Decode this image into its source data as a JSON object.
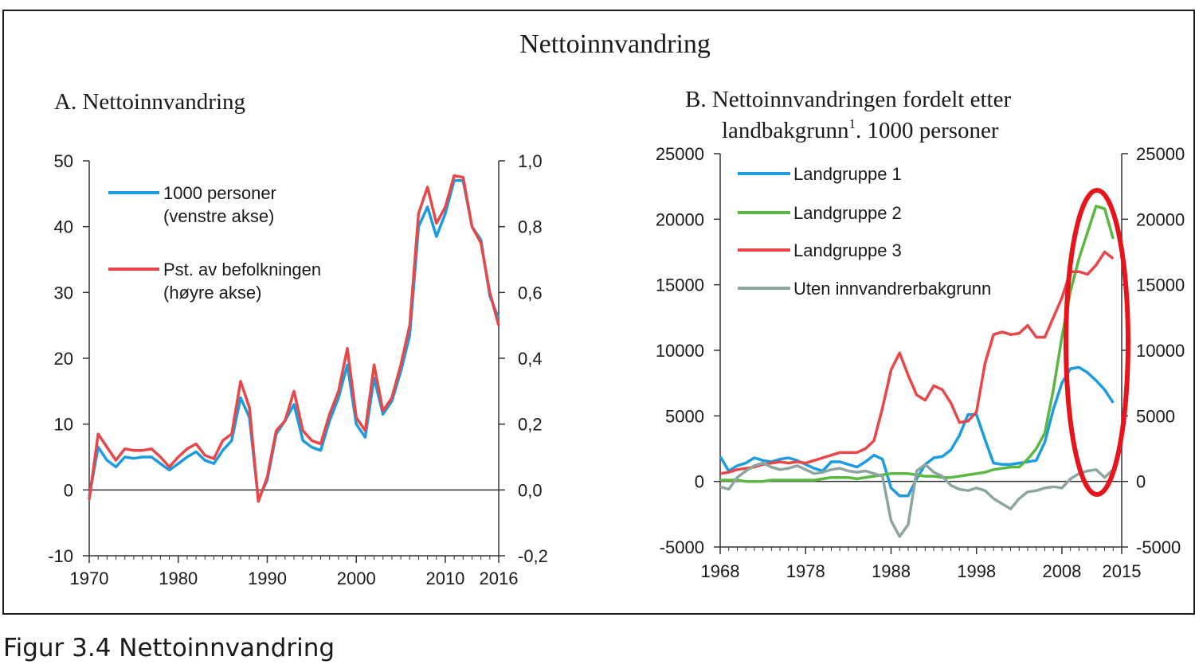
{
  "figure": {
    "title": "Nettoinnvandring",
    "caption": "Figur 3.4  Nettoinnvandring"
  },
  "panel_a": {
    "title": "A. Nettoinnvandring",
    "legend": [
      "1000 personer",
      "(venstre akse)",
      "Pst. av befolkningen",
      "(høyre akse)"
    ]
  },
  "panel_b": {
    "title_line1": "B. Nettoinnvandringen fordelt etter",
    "title_line2": "landbakgrunn",
    "title_sup": "1",
    "title_line2_rest": ". 1000 personer",
    "legend": [
      "Landgruppe 1",
      "Landgruppe 2",
      "Landgruppe 3",
      "Uten innvandrerbakgrunn"
    ]
  },
  "annotation": {
    "type": "ellipse",
    "color": "#e8141b"
  },
  "chart_data": [
    {
      "type": "line",
      "title": "A. Nettoinnvandring",
      "x_ticks": [
        1970,
        1980,
        1990,
        2000,
        2010,
        2016
      ],
      "x_range": [
        1970,
        2016
      ],
      "ylim_left": [
        -10,
        50
      ],
      "yticks_left": [
        "-10",
        "0",
        "10",
        "20",
        "30",
        "40",
        "50"
      ],
      "ylim_right": [
        -0.2,
        1.0
      ],
      "yticks_right": [
        "-0,2",
        "0,0",
        "0,2",
        "0,4",
        "0,6",
        "0,8",
        "1,0"
      ],
      "grid": false,
      "legend_position": "top-left",
      "x": [
        1970,
        1971,
        1972,
        1973,
        1974,
        1975,
        1976,
        1977,
        1978,
        1979,
        1980,
        1981,
        1982,
        1983,
        1984,
        1985,
        1986,
        1987,
        1988,
        1989,
        1990,
        1991,
        1992,
        1993,
        1994,
        1995,
        1996,
        1997,
        1998,
        1999,
        2000,
        2001,
        2002,
        2003,
        2004,
        2005,
        2006,
        2007,
        2008,
        2009,
        2010,
        2011,
        2012,
        2013,
        2014,
        2015,
        2016
      ],
      "series": [
        {
          "name": "1000 personer (venstre akse)",
          "axis": "left",
          "color": "#1b9be0",
          "values": [
            -1,
            6.5,
            4.5,
            3.5,
            5,
            4.8,
            5,
            5,
            4,
            3,
            4,
            5,
            5.8,
            4.5,
            4,
            6,
            7.5,
            14,
            11,
            -1.5,
            1.5,
            8.5,
            10.5,
            13,
            7.5,
            6.5,
            6,
            10.5,
            14,
            19,
            10,
            8,
            17,
            11.5,
            13.5,
            18,
            23.5,
            40,
            43,
            38.5,
            42,
            47,
            47,
            40,
            38,
            29.5,
            26
          ]
        },
        {
          "name": "Pst. av befolkningen (høyre akse)",
          "axis": "right",
          "color": "#e8474a",
          "values": [
            -0.03,
            0.17,
            0.13,
            0.09,
            0.125,
            0.12,
            0.12,
            0.125,
            0.1,
            0.07,
            0.1,
            0.125,
            0.14,
            0.105,
            0.095,
            0.15,
            0.17,
            0.33,
            0.25,
            -0.035,
            0.04,
            0.18,
            0.21,
            0.3,
            0.18,
            0.15,
            0.14,
            0.23,
            0.3,
            0.43,
            0.22,
            0.18,
            0.38,
            0.24,
            0.28,
            0.38,
            0.5,
            0.84,
            0.92,
            0.81,
            0.86,
            0.955,
            0.95,
            0.8,
            0.75,
            0.6,
            0.5
          ]
        }
      ]
    },
    {
      "type": "line",
      "title": "B. Nettoinnvandringen fordelt etter landbakgrunn¹. 1000 personer",
      "x_ticks": [
        1968,
        1978,
        1988,
        1998,
        2008,
        2015
      ],
      "x_range": [
        1968,
        2015
      ],
      "ylim": [
        -5000,
        25000
      ],
      "yticks": [
        "-5000",
        "0",
        "5000",
        "10000",
        "15000",
        "20000",
        "25000"
      ],
      "grid": false,
      "legend_position": "top-left",
      "x": [
        1968,
        1969,
        1970,
        1971,
        1972,
        1973,
        1974,
        1975,
        1976,
        1977,
        1978,
        1979,
        1980,
        1981,
        1982,
        1983,
        1984,
        1985,
        1986,
        1987,
        1988,
        1989,
        1990,
        1991,
        1992,
        1993,
        1994,
        1995,
        1996,
        1997,
        1998,
        1999,
        2000,
        2001,
        2002,
        2003,
        2004,
        2005,
        2006,
        2007,
        2008,
        2009,
        2010,
        2011,
        2012,
        2013,
        2014
      ],
      "series": [
        {
          "name": "Landgruppe 1",
          "color": "#1b9be0",
          "values": [
            1900,
            800,
            1200,
            1400,
            1800,
            1600,
            1500,
            1700,
            1800,
            1600,
            1300,
            1000,
            800,
            1500,
            1500,
            1300,
            1100,
            1500,
            2000,
            1700,
            -500,
            -1100,
            -1100,
            200,
            1300,
            1800,
            1900,
            2400,
            3500,
            5100,
            5100,
            3200,
            1400,
            1300,
            1300,
            1400,
            1500,
            1600,
            3000,
            5500,
            7500,
            8600,
            8700,
            8300,
            7700,
            7000,
            6000
          ]
        },
        {
          "name": "Landgruppe 2",
          "color": "#5ab840",
          "values": [
            100,
            100,
            100,
            0,
            0,
            0,
            100,
            100,
            100,
            100,
            100,
            100,
            200,
            300,
            300,
            300,
            200,
            300,
            400,
            500,
            600,
            600,
            600,
            500,
            400,
            400,
            300,
            300,
            400,
            500,
            600,
            700,
            900,
            1000,
            1100,
            1100,
            1700,
            2500,
            3700,
            7000,
            11000,
            14500,
            17000,
            19000,
            21000,
            20800,
            18500
          ]
        },
        {
          "name": "Landgruppe 3",
          "color": "#e8474a",
          "values": [
            600,
            700,
            900,
            1000,
            1100,
            1300,
            1400,
            1500,
            1400,
            1500,
            1400,
            1600,
            1800,
            2000,
            2200,
            2200,
            2200,
            2500,
            3100,
            5600,
            8500,
            9800,
            8100,
            6600,
            6200,
            7300,
            7000,
            6000,
            4500,
            4600,
            5300,
            9000,
            11200,
            11400,
            11200,
            11300,
            11900,
            11000,
            11000,
            12500,
            14000,
            16000,
            16000,
            15800,
            16500,
            17500,
            17000
          ]
        },
        {
          "name": "Uten innvandrerbakgrunn",
          "color": "#8da5a0",
          "values": [
            -400,
            -600,
            300,
            800,
            1200,
            1400,
            1100,
            900,
            1000,
            1200,
            900,
            600,
            700,
            900,
            1000,
            800,
            700,
            800,
            600,
            400,
            -3000,
            -4200,
            -3300,
            800,
            1300,
            700,
            400,
            -300,
            -600,
            -700,
            -500,
            -700,
            -1300,
            -1700,
            -2100,
            -1300,
            -800,
            -700,
            -500,
            -400,
            -500,
            200,
            600,
            800,
            900,
            300,
            900
          ]
        }
      ],
      "annotation": "red ellipse highlighting 2009–2015"
    }
  ]
}
